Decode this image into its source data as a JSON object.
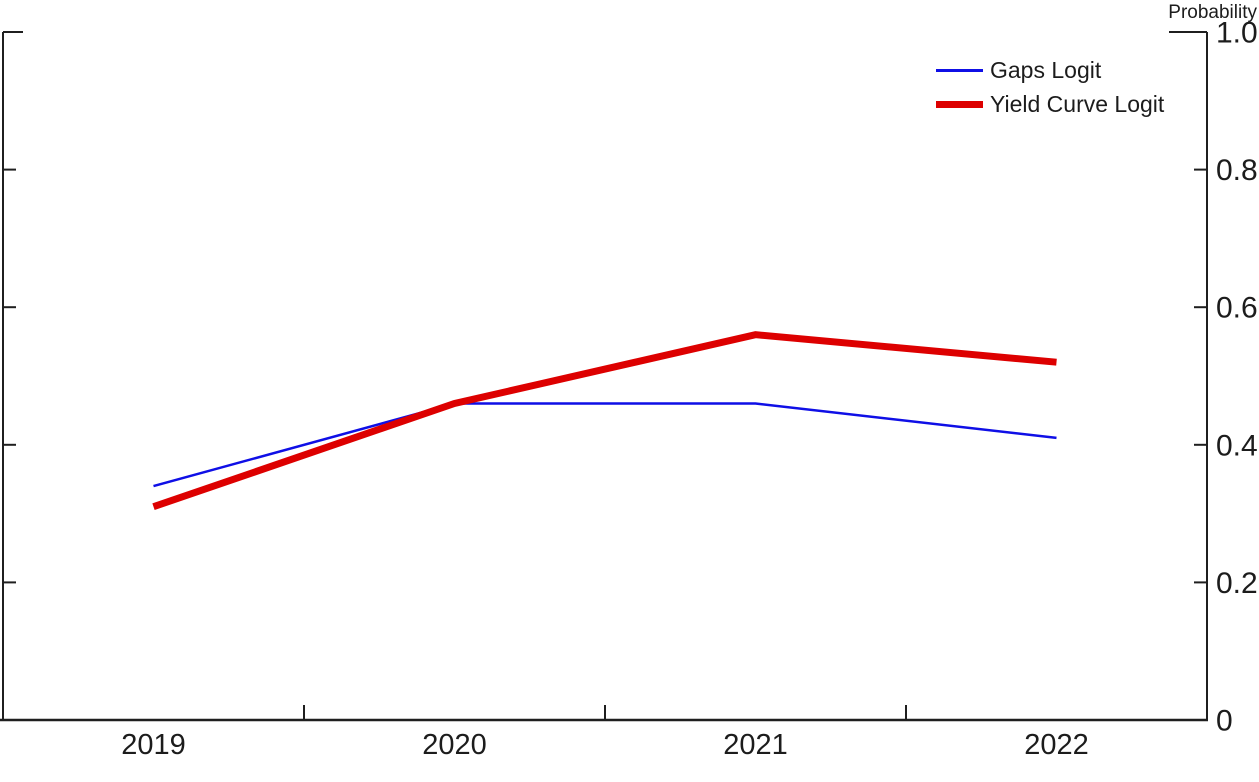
{
  "chart_data": {
    "type": "line",
    "title": "",
    "xlabel": "",
    "ylabel": "Probability",
    "categories": [
      "2019",
      "2020",
      "2021",
      "2022"
    ],
    "series": [
      {
        "name": "Gaps Logit",
        "color": "#0f0fe6",
        "line_width": 2.5,
        "values": [
          0.34,
          0.46,
          0.46,
          0.41
        ]
      },
      {
        "name": "Yield Curve Logit",
        "color": "#dd0000",
        "line_width": 7,
        "values": [
          0.31,
          0.46,
          0.56,
          0.52
        ]
      }
    ],
    "ylim": [
      0,
      1.0
    ],
    "yticks": [
      0,
      0.2,
      0.4,
      0.6,
      0.8,
      1.0
    ],
    "ytick_labels": [
      "0",
      "0.2",
      "0.4",
      "0.6",
      "0.8",
      "1.0"
    ],
    "grid": false,
    "legend_position": "top-right",
    "y_axis_side": "right",
    "axis_color": "#1f1f1f"
  }
}
